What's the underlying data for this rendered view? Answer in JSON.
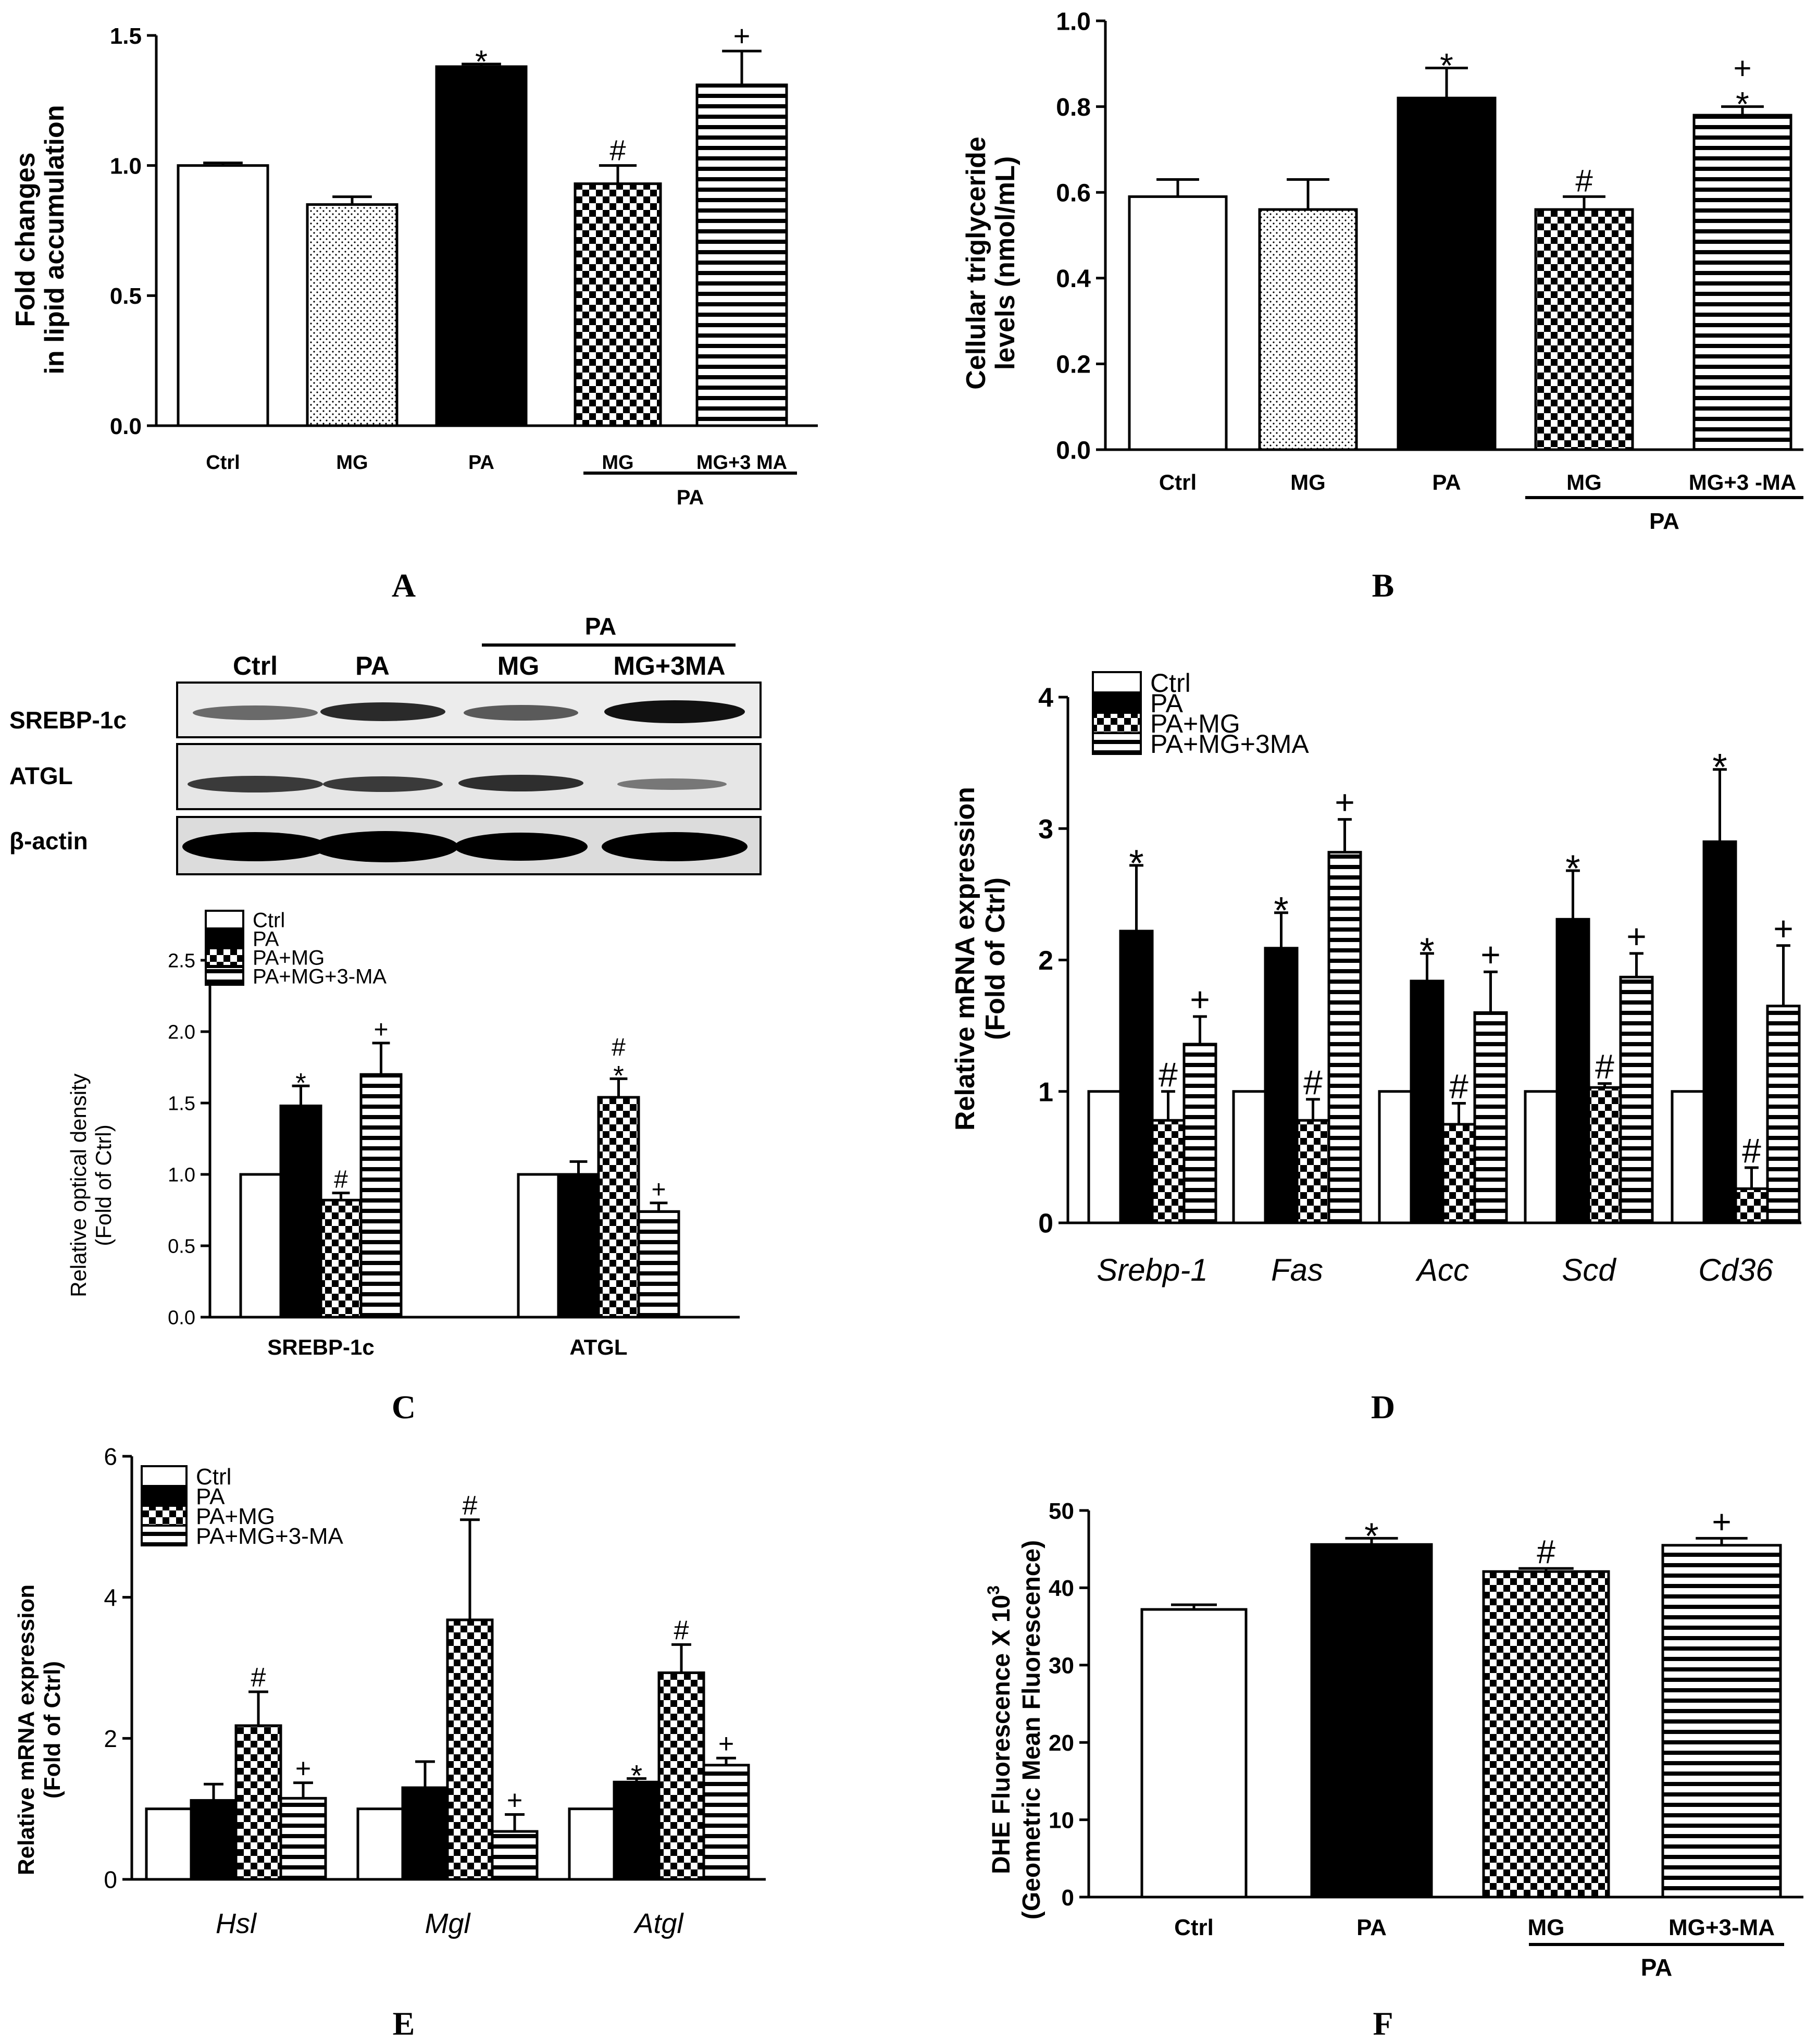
{
  "colors": {
    "ink": "#000000",
    "paper": "#ffffff"
  },
  "panel_labels": [
    "A",
    "B",
    "C",
    "D",
    "E",
    "F"
  ],
  "chart_data": [
    {
      "id": "A",
      "type": "bar",
      "ylabel_lines": [
        "Fold changes",
        "in lipid accumulation"
      ],
      "ylim": [
        0,
        1.5
      ],
      "yticks": [
        "0.0",
        "0.5",
        "1.0",
        "1.5"
      ],
      "categories": [
        "Ctrl",
        "MG",
        "PA",
        "MG",
        "MG+3 MA"
      ],
      "group_label": "PA",
      "values": [
        1.0,
        0.85,
        1.38,
        0.93,
        1.31
      ],
      "errors": [
        0.01,
        0.03,
        0.01,
        0.07,
        0.13
      ],
      "patterns": [
        "white",
        "dots",
        "black",
        "checker",
        "hstripe"
      ],
      "annotations": [
        [
          "",
          ""
        ],
        [
          "",
          ""
        ],
        [
          "*",
          ""
        ],
        [
          "#",
          ""
        ],
        [
          "+",
          ""
        ]
      ]
    },
    {
      "id": "B",
      "type": "bar",
      "ylabel_lines": [
        "Cellular triglyceride",
        "levels (nmol/mL)"
      ],
      "ylim": [
        0,
        1.0
      ],
      "yticks": [
        "0.0",
        "0.2",
        "0.4",
        "0.6",
        "0.8",
        "1.0"
      ],
      "categories": [
        "Ctrl",
        "MG",
        "PA",
        "MG",
        "MG+3 -MA"
      ],
      "group_label": "PA",
      "values": [
        0.59,
        0.56,
        0.82,
        0.56,
        0.78
      ],
      "errors": [
        0.04,
        0.07,
        0.07,
        0.03,
        0.02
      ],
      "patterns": [
        "white",
        "dots",
        "black",
        "checker",
        "hstripe"
      ],
      "annotations": [
        [
          "",
          ""
        ],
        [
          "",
          ""
        ],
        [
          "*",
          ""
        ],
        [
          "#",
          ""
        ],
        [
          "*",
          "+"
        ]
      ]
    },
    {
      "id": "C",
      "type": "bar",
      "ylabel_lines": [
        "Relative optical density",
        "(Fold of Ctrl)"
      ],
      "ylim": [
        0,
        2.5
      ],
      "yticks": [
        "0.0",
        "0.5",
        "1.0",
        "1.5",
        "2.0",
        "2.5"
      ],
      "legend": [
        "Ctrl",
        "PA",
        "PA+MG",
        "PA+MG+3-MA"
      ],
      "groups": [
        "SREBP-1c",
        "ATGL"
      ],
      "series_values": [
        [
          1.0,
          1.48,
          0.82,
          1.7
        ],
        [
          1.0,
          1.0,
          1.54,
          0.74
        ]
      ],
      "series_errors": [
        [
          0,
          0.14,
          0.05,
          0.22
        ],
        [
          0,
          0.09,
          0.13,
          0.06
        ]
      ],
      "annotations": [
        [
          [
            "",
            ""
          ],
          [
            "*",
            ""
          ],
          [
            "#",
            ""
          ],
          [
            "+",
            ""
          ]
        ],
        [
          [
            "",
            ""
          ],
          [
            "",
            ""
          ],
          [
            "*",
            "#"
          ],
          [
            "+",
            ""
          ]
        ]
      ],
      "blot": {
        "group_label": "PA",
        "lanes": [
          "Ctrl",
          "PA",
          "MG",
          "MG+3MA"
        ],
        "rows": [
          "SREBP-1c",
          "ATGL",
          "β-actin"
        ]
      }
    },
    {
      "id": "D",
      "type": "bar",
      "ylabel_lines": [
        "Relative mRNA expression",
        "(Fold of Ctrl)"
      ],
      "ylim": [
        0,
        4
      ],
      "yticks": [
        "0",
        "1",
        "2",
        "3",
        "4"
      ],
      "legend": [
        "Ctrl",
        "PA",
        "PA+MG",
        "PA+MG+3MA"
      ],
      "groups": [
        "Srebp-1",
        "Fas",
        "Acc",
        "Scd",
        "Cd36"
      ],
      "series_values": [
        [
          1.0,
          2.22,
          0.78,
          1.36
        ],
        [
          1.0,
          2.09,
          0.78,
          2.82
        ],
        [
          1.0,
          1.84,
          0.75,
          1.6
        ],
        [
          1.0,
          2.31,
          1.03,
          1.87
        ],
        [
          1.0,
          2.9,
          0.26,
          1.65
        ]
      ],
      "series_errors": [
        [
          0,
          0.5,
          0.22,
          0.21
        ],
        [
          0,
          0.27,
          0.16,
          0.25
        ],
        [
          0,
          0.21,
          0.16,
          0.31
        ],
        [
          0,
          0.37,
          0.03,
          0.18
        ],
        [
          0,
          0.55,
          0.16,
          0.46
        ]
      ],
      "annotations": [
        [
          [
            "",
            ""
          ],
          [
            "*",
            ""
          ],
          [
            "#",
            ""
          ],
          [
            "+",
            ""
          ]
        ],
        [
          [
            "",
            ""
          ],
          [
            "*",
            ""
          ],
          [
            "#",
            ""
          ],
          [
            "+",
            ""
          ]
        ],
        [
          [
            "",
            ""
          ],
          [
            "*",
            ""
          ],
          [
            "#",
            ""
          ],
          [
            "+",
            ""
          ]
        ],
        [
          [
            "",
            ""
          ],
          [
            "*",
            ""
          ],
          [
            "#",
            ""
          ],
          [
            "+",
            ""
          ]
        ],
        [
          [
            "",
            ""
          ],
          [
            "*",
            ""
          ],
          [
            "#",
            ""
          ],
          [
            "+",
            ""
          ]
        ]
      ]
    },
    {
      "id": "E",
      "type": "bar",
      "ylabel_lines": [
        "Relative mRNA expression",
        "(Fold of Ctrl)"
      ],
      "ylim": [
        0,
        6
      ],
      "yticks": [
        "0",
        "2",
        "4",
        "6"
      ],
      "legend": [
        "Ctrl",
        "PA",
        "PA+MG",
        "PA+MG+3-MA"
      ],
      "groups": [
        "Hsl",
        "Mgl",
        "Atgl"
      ],
      "series_values": [
        [
          1.0,
          1.12,
          2.18,
          1.15
        ],
        [
          1.0,
          1.3,
          3.68,
          0.68
        ],
        [
          1.0,
          1.38,
          2.93,
          1.62
        ]
      ],
      "series_errors": [
        [
          0,
          0.23,
          0.48,
          0.22
        ],
        [
          0,
          0.37,
          1.42,
          0.24
        ],
        [
          0,
          0.05,
          0.4,
          0.1
        ]
      ],
      "annotations": [
        [
          [
            "",
            ""
          ],
          [
            "",
            ""
          ],
          [
            "#",
            ""
          ],
          [
            "+",
            ""
          ]
        ],
        [
          [
            "",
            ""
          ],
          [
            "",
            ""
          ],
          [
            "#",
            ""
          ],
          [
            "+",
            ""
          ]
        ],
        [
          [
            "",
            ""
          ],
          [
            "*",
            ""
          ],
          [
            "#",
            ""
          ],
          [
            "+",
            ""
          ]
        ]
      ]
    },
    {
      "id": "F",
      "type": "bar",
      "ylabel_lines": [
        "DHE Fluorescence X 10",
        "(Geometric Mean Fluorescence)"
      ],
      "ylabel_sup": "3",
      "ylim": [
        0,
        50
      ],
      "yticks": [
        "0",
        "10",
        "20",
        "30",
        "40",
        "50"
      ],
      "categories": [
        "Ctrl",
        "PA",
        "MG",
        "MG+3-MA"
      ],
      "group_label": "PA",
      "values": [
        37.2,
        45.6,
        42.1,
        45.5
      ],
      "errors": [
        0.6,
        0.8,
        0.4,
        0.9
      ],
      "patterns": [
        "white",
        "black",
        "checker",
        "hstripe"
      ],
      "annotations": [
        [
          "",
          ""
        ],
        [
          "*",
          ""
        ],
        [
          "#",
          ""
        ],
        [
          "+",
          ""
        ]
      ]
    }
  ]
}
